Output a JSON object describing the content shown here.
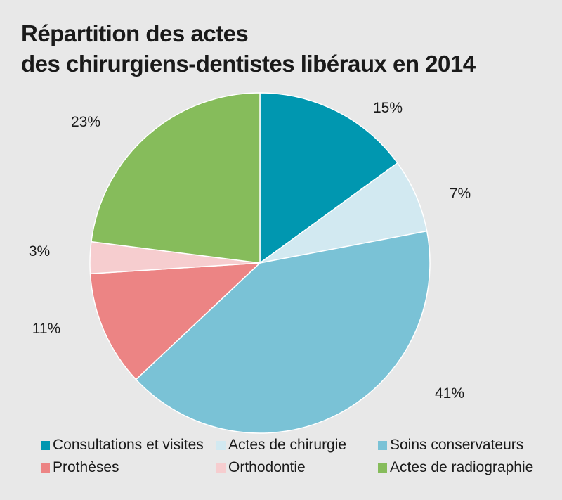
{
  "chart_data": {
    "type": "pie",
    "title_line1": "Répartition des actes",
    "title_line2": "des chirurgiens-dentistes libéraux en 2014",
    "slices": [
      {
        "name": "Consultations et visites",
        "value": 15,
        "label": "15%",
        "color": "#0097b0"
      },
      {
        "name": "Actes de chirurgie",
        "value": 7,
        "label": "7%",
        "color": "#d2e9f1"
      },
      {
        "name": "Soins conservateurs",
        "value": 41,
        "label": "41%",
        "color": "#7ac2d6"
      },
      {
        "name": "Prothèses",
        "value": 11,
        "label": "11%",
        "color": "#ec8484"
      },
      {
        "name": "Orthodontie",
        "value": 3,
        "label": "3%",
        "color": "#f6cdcf"
      },
      {
        "name": "Actes de radiographie",
        "value": 23,
        "label": "23%",
        "color": "#86bc5b"
      }
    ],
    "legend_position": "bottom"
  }
}
